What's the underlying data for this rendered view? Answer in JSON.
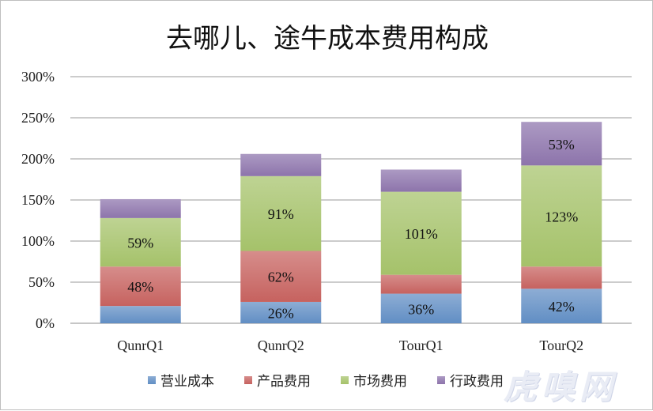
{
  "chart_data": {
    "type": "bar",
    "stacked": true,
    "title": "去哪儿、途牛成本费用构成",
    "categories": [
      "QunrQ1",
      "QunrQ2",
      "TourQ1",
      "TourQ2"
    ],
    "series": [
      {
        "name": "营业成本",
        "color": "#4f81bd",
        "values": [
          21,
          26,
          36,
          42
        ],
        "labels": [
          "",
          "26%",
          "36%",
          "42%"
        ]
      },
      {
        "name": "产品费用",
        "color": "#c0504d",
        "values": [
          48,
          62,
          23,
          27
        ],
        "labels": [
          "48%",
          "62%",
          "",
          ""
        ]
      },
      {
        "name": "市场费用",
        "color": "#9bbb59",
        "values": [
          59,
          91,
          101,
          123
        ],
        "labels": [
          "59%",
          "91%",
          "101%",
          "123%"
        ]
      },
      {
        "name": "行政费用",
        "color": "#8064a2",
        "values": [
          23,
          27,
          27,
          53
        ],
        "labels": [
          "",
          "",
          "",
          "53%"
        ]
      }
    ],
    "yticks": [
      "0%",
      "50%",
      "100%",
      "150%",
      "200%",
      "250%",
      "300%"
    ],
    "ylim": [
      0,
      300
    ],
    "grid": true,
    "legend_position": "bottom"
  },
  "watermark": "虎嗅网"
}
